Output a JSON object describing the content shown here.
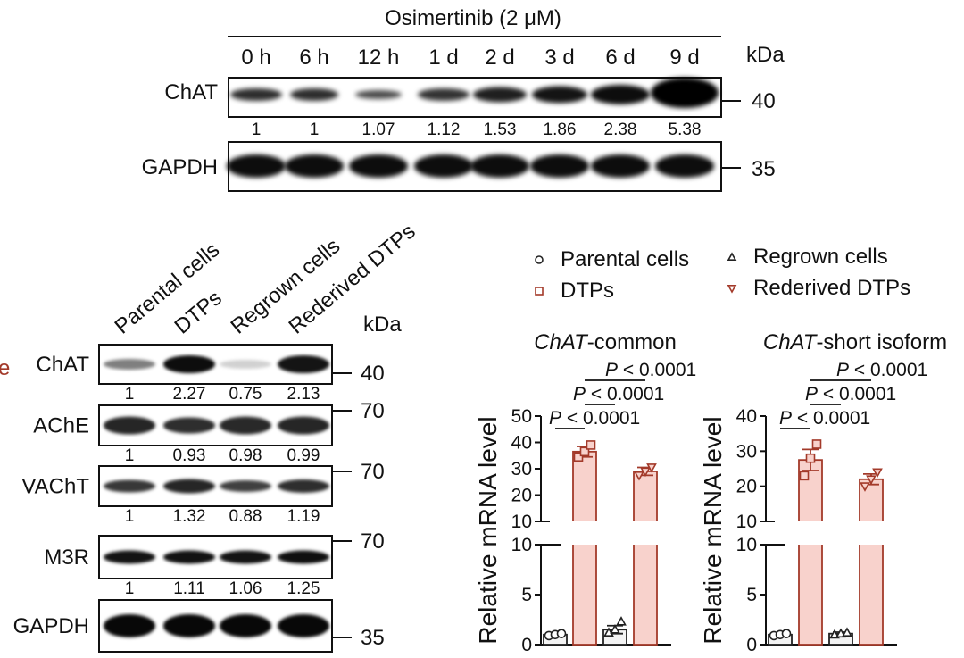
{
  "blot_top": {
    "treatment": "Osimertinib (2 μM)",
    "timepoints": [
      "0 h",
      "6 h",
      "12 h",
      "1 d",
      "2 d",
      "3 d",
      "6 d",
      "9 d"
    ],
    "kda_label": "kDa",
    "rows": [
      {
        "protein": "ChAT",
        "marker": "40"
      },
      {
        "protein": "GAPDH",
        "marker": "35"
      }
    ],
    "chat_quant": [
      "1",
      "1",
      "1.07",
      "1.12",
      "1.53",
      "1.86",
      "2.38",
      "5.38"
    ]
  },
  "blot_bottom": {
    "conditions": [
      "Parental cells",
      "DTPs",
      "Regrown cells",
      "Rederived DTPs"
    ],
    "kda_label": "kDa",
    "cut_label": "e",
    "rows": [
      {
        "protein": "ChAT",
        "marker": "40",
        "quant": [
          "1",
          "2.27",
          "0.75",
          "2.13"
        ]
      },
      {
        "protein": "AChE",
        "marker": "70",
        "quant": [
          "1",
          "0.93",
          "0.98",
          "0.99"
        ]
      },
      {
        "protein": "VAChT",
        "marker": "70",
        "quant": [
          "1",
          "1.32",
          "0.88",
          "1.19"
        ]
      },
      {
        "protein": "M3R",
        "marker": "70",
        "quant": [
          "1",
          "1.11",
          "1.06",
          "1.25"
        ]
      },
      {
        "protein": "GAPDH",
        "marker": "35"
      }
    ]
  },
  "legend": {
    "items": [
      {
        "label": "Parental cells",
        "color": "#222222",
        "marker": "circle"
      },
      {
        "label": "DTPs",
        "color": "#a33a2a",
        "marker": "square"
      },
      {
        "label": "Regrown cells",
        "color": "#222222",
        "marker": "triangle-up"
      },
      {
        "label": "Rederived DTPs",
        "color": "#a33a2a",
        "marker": "triangle-down"
      }
    ]
  },
  "chart_data": [
    {
      "type": "bar",
      "title_italic": "ChAT",
      "title_rest": "-common",
      "ylabel": "Relative mRNA level",
      "categories": [
        "Parental cells",
        "DTPs",
        "Regrown cells",
        "Rederived DTPs"
      ],
      "values": [
        1.0,
        36.5,
        1.5,
        29.0
      ],
      "sem": [
        0.1,
        2.0,
        0.4,
        1.5
      ],
      "points": [
        [
          0.9,
          1.0,
          1.1
        ],
        [
          34.5,
          36.5,
          39.0
        ],
        [
          1.2,
          1.5,
          2.3
        ],
        [
          27.5,
          29.0,
          30.5
        ]
      ],
      "broken_axis": {
        "lower": [
          0,
          10
        ],
        "upper": [
          10,
          50
        ]
      },
      "y_ticks_lower": [
        "0",
        "5",
        "10"
      ],
      "y_ticks_upper": [
        "10",
        "20",
        "30",
        "40",
        "50"
      ],
      "comparisons": [
        {
          "from": 0,
          "to": 1,
          "label_italic": "P",
          "label_rest": " < 0.0001"
        },
        {
          "from": 1,
          "to": 2,
          "label_italic": "P",
          "label_rest": " < 0.0001"
        },
        {
          "from": 1,
          "to": 3,
          "label_italic": "P",
          "label_rest": " < 0.0001"
        }
      ],
      "colors": {
        "control": "#f3f3f3",
        "dtp": "#f8d2cc",
        "edge": "#a33a2a"
      }
    },
    {
      "type": "bar",
      "title_italic": "ChAT",
      "title_rest": "-short isoform",
      "ylabel": "Relative mRNA level",
      "categories": [
        "Parental cells",
        "DTPs",
        "Regrown cells",
        "Rederived DTPs"
      ],
      "values": [
        1.0,
        27.5,
        1.1,
        22.0
      ],
      "sem": [
        0.1,
        3.0,
        0.15,
        1.5
      ],
      "points": [
        [
          0.9,
          1.0,
          1.1
        ],
        [
          23.0,
          28.0,
          32.0
        ],
        [
          1.0,
          1.1,
          1.2
        ],
        [
          20.0,
          22.0,
          24.0
        ]
      ],
      "broken_axis": {
        "lower": [
          0,
          10
        ],
        "upper": [
          10,
          40
        ]
      },
      "y_ticks_lower": [
        "0",
        "5",
        "10"
      ],
      "y_ticks_upper": [
        "10",
        "20",
        "30",
        "40"
      ],
      "comparisons": [
        {
          "from": 0,
          "to": 1,
          "label_italic": "P",
          "label_rest": " < 0.0001"
        },
        {
          "from": 1,
          "to": 2,
          "label_italic": "P",
          "label_rest": " < 0.0001"
        },
        {
          "from": 1,
          "to": 3,
          "label_italic": "P",
          "label_rest": " < 0.0001"
        }
      ],
      "colors": {
        "control": "#f3f3f3",
        "dtp": "#f8d2cc",
        "edge": "#a33a2a"
      }
    }
  ]
}
